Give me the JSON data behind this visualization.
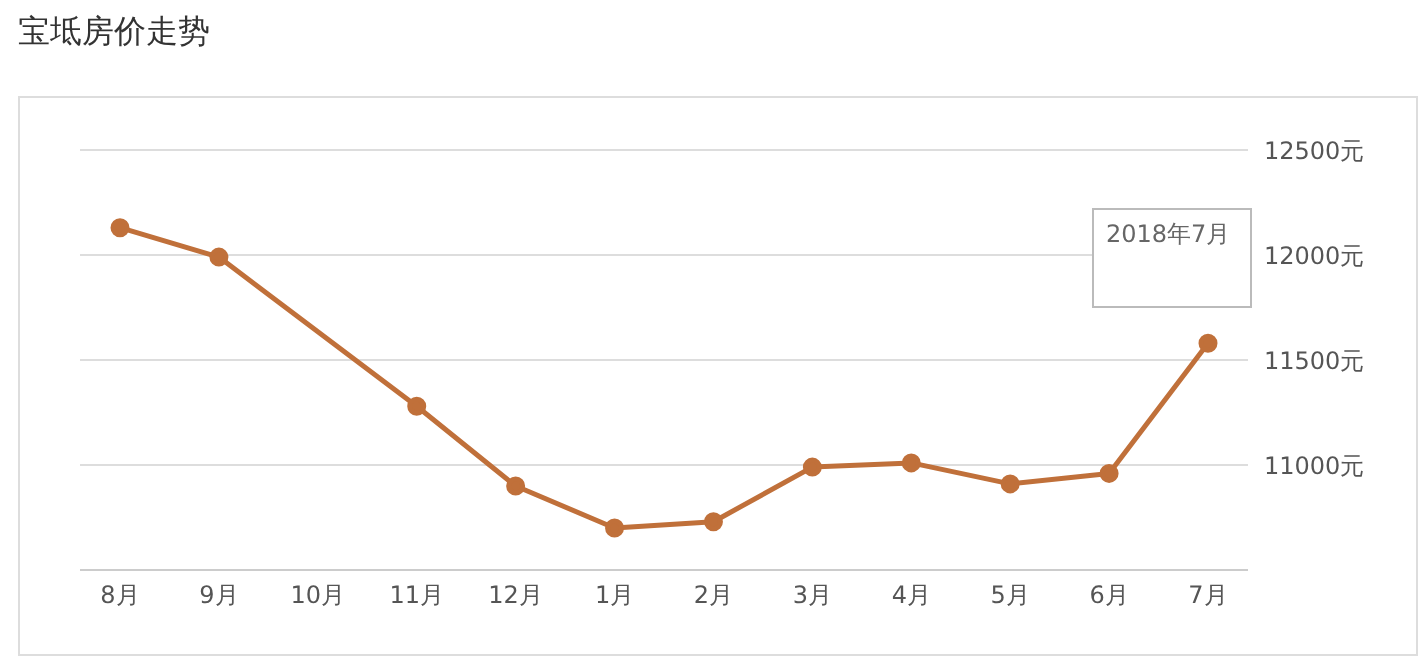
{
  "chart_data": {
    "type": "line",
    "title": "宝坻房价走势",
    "categories": [
      "8月",
      "9月",
      "10月",
      "11月",
      "12月",
      "1月",
      "2月",
      "3月",
      "4月",
      "5月",
      "6月",
      "7月"
    ],
    "series": [
      {
        "color": "#c0703a",
        "values": [
          12130,
          11990,
          null,
          11280,
          10900,
          10700,
          10730,
          10990,
          11010,
          10910,
          10960,
          11580
        ]
      }
    ],
    "ylim": [
      10500,
      12500
    ],
    "yticks": [
      {
        "value": 11000,
        "label": "11000元"
      },
      {
        "value": 11500,
        "label": "11500元"
      },
      {
        "value": 12000,
        "label": "12000元"
      },
      {
        "value": 12500,
        "label": "12500元"
      }
    ],
    "grid": "y",
    "marker": "circle",
    "annotations": [
      "2018年7月"
    ]
  }
}
